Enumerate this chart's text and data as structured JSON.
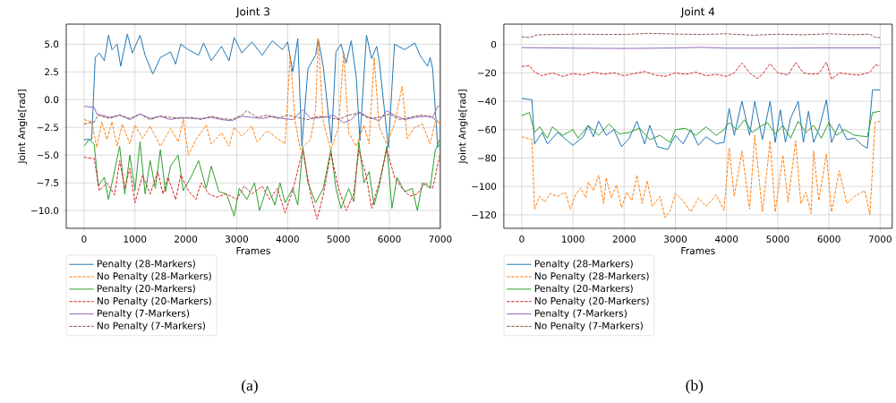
{
  "chart_data": [
    {
      "type": "line",
      "title": "Joint 3",
      "xlabel": "Frames",
      "ylabel": "Joint Angle[rad]",
      "annotations": [
        "(a)"
      ],
      "grid": true,
      "legend": "bottom left",
      "xlim": [
        -350,
        7000
      ],
      "ylim": [
        -11.6,
        6.8
      ],
      "xticks": [
        0,
        1000,
        2000,
        3000,
        4000,
        5000,
        6000,
        7000
      ],
      "yticks": [
        {
          "value": 5,
          "label": "5.0"
        },
        {
          "value": 2.5,
          "label": "2.5"
        },
        {
          "value": 0,
          "label": "0.0"
        },
        {
          "value": -2.5,
          "label": "−2.5"
        },
        {
          "value": -5,
          "label": "−5.0"
        },
        {
          "value": -7.5,
          "label": "−7.5"
        },
        {
          "value": -10,
          "label": "−10.0"
        }
      ],
      "series": [
        {
          "name": "Penalty (28-Markers)",
          "color": "#1f77b4",
          "line_style": "solid",
          "x": [
            0,
            150,
            220,
            300,
            400,
            480,
            550,
            650,
            720,
            850,
            950,
            1100,
            1200,
            1350,
            1500,
            1700,
            1800,
            1900,
            2050,
            2250,
            2350,
            2500,
            2700,
            2850,
            2950,
            3100,
            3300,
            3500,
            3700,
            3900,
            4000,
            4100,
            4200,
            4280,
            4400,
            4550,
            4600,
            4700,
            4860,
            4950,
            5050,
            5150,
            5250,
            5350,
            5420,
            5550,
            5650,
            5750,
            5800,
            5980,
            6100,
            6300,
            6500,
            6600,
            6750,
            6800,
            6850,
            6950,
            7000
          ],
          "values": [
            -3.6,
            -3.6,
            3.8,
            4.2,
            3.5,
            5.8,
            4.5,
            5.0,
            3.0,
            5.9,
            4.2,
            5.8,
            4.0,
            2.3,
            3.8,
            4.3,
            3.2,
            5.0,
            4.5,
            4.0,
            5.1,
            3.5,
            4.8,
            3.5,
            5.6,
            4.2,
            5.2,
            4.0,
            5.3,
            4.5,
            5.2,
            2.5,
            5.5,
            -4.2,
            2.8,
            4.0,
            5.5,
            3.0,
            -3.9,
            4.3,
            5.0,
            3.3,
            5.3,
            2.0,
            -3.7,
            5.8,
            3.7,
            4.8,
            3.5,
            -4.3,
            5.0,
            4.5,
            5.1,
            4.0,
            3.0,
            3.8,
            2.8,
            -4.3,
            -4.0
          ]
        },
        {
          "name": "No Penalty (28-Markers)",
          "color": "#ff7f0e",
          "line_style": "dashed",
          "x": [
            0,
            150,
            250,
            350,
            450,
            550,
            650,
            750,
            900,
            1000,
            1150,
            1300,
            1500,
            1700,
            1850,
            1950,
            2050,
            2200,
            2400,
            2500,
            2700,
            2850,
            2950,
            3100,
            3300,
            3400,
            3600,
            3800,
            3950,
            4050,
            4150,
            4250,
            4450,
            4550,
            4600,
            4700,
            4850,
            5000,
            5100,
            5200,
            5350,
            5500,
            5600,
            5700,
            5800,
            5950,
            6100,
            6250,
            6350,
            6500,
            6650,
            6800,
            6900,
            7000
          ],
          "values": [
            -1.8,
            -2.0,
            -4.3,
            -2.0,
            -3.6,
            -2.0,
            -4.2,
            -2.2,
            -4.0,
            -2.3,
            -3.5,
            -2.4,
            -4.2,
            -2.6,
            -3.8,
            -1.8,
            -5.0,
            -3.6,
            -2.3,
            -4.0,
            -3.0,
            -4.2,
            -2.5,
            -3.3,
            -2.4,
            -3.8,
            -2.8,
            -3.5,
            -4.0,
            4.0,
            -2.0,
            -4.5,
            -3.6,
            -1.0,
            5.5,
            -2.0,
            -4.5,
            -2.5,
            4.2,
            -3.0,
            -4.2,
            -2.3,
            -4.0,
            3.8,
            -2.5,
            -4.0,
            -2.2,
            1.2,
            -3.5,
            -2.5,
            -2.2,
            -4.0,
            -2.0,
            -2.2
          ]
        },
        {
          "name": "Penalty (20-Markers)",
          "color": "#2ca02c",
          "line_style": "solid",
          "x": [
            0,
            100,
            200,
            280,
            400,
            480,
            550,
            700,
            800,
            900,
            1000,
            1100,
            1200,
            1300,
            1400,
            1500,
            1600,
            1700,
            1850,
            1950,
            2100,
            2250,
            2400,
            2500,
            2650,
            2800,
            2950,
            3050,
            3200,
            3350,
            3450,
            3600,
            3750,
            3850,
            3950,
            4100,
            4200,
            4300,
            4400,
            4550,
            4700,
            4850,
            4950,
            5050,
            5200,
            5300,
            5400,
            5500,
            5600,
            5700,
            5800,
            5950,
            6050,
            6150,
            6300,
            6450,
            6550,
            6650,
            6800,
            6900,
            7000
          ],
          "values": [
            -4.2,
            -3.6,
            -4.0,
            -7.8,
            -7.0,
            -9.0,
            -7.5,
            -4.2,
            -8.5,
            -5.0,
            -8.2,
            -3.8,
            -8.5,
            -5.5,
            -8.0,
            -4.5,
            -8.3,
            -6.0,
            -5.0,
            -8.2,
            -7.0,
            -5.5,
            -8.0,
            -6.0,
            -8.3,
            -8.5,
            -10.5,
            -8.0,
            -9.0,
            -7.5,
            -10.0,
            -7.8,
            -9.5,
            -7.5,
            -9.3,
            -8.0,
            -9.5,
            -4.3,
            -7.5,
            -9.3,
            -8.0,
            -4.5,
            -8.0,
            -9.8,
            -8.0,
            -9.2,
            -3.8,
            -7.5,
            -6.5,
            -9.5,
            -7.8,
            -4.2,
            -9.8,
            -7.0,
            -8.3,
            -8.0,
            -10.0,
            -7.5,
            -8.0,
            -4.6,
            -3.5
          ]
        },
        {
          "name": "No Penalty (20-Markers)",
          "color": "#d62728",
          "line_style": "dashed",
          "x": [
            0,
            200,
            300,
            450,
            600,
            700,
            800,
            900,
            1000,
            1150,
            1300,
            1450,
            1550,
            1650,
            1800,
            1900,
            2050,
            2200,
            2300,
            2450,
            2600,
            2800,
            3000,
            3150,
            3300,
            3500,
            3650,
            3800,
            3950,
            4100,
            4300,
            4450,
            4580,
            4700,
            4850,
            5000,
            5150,
            5300,
            5400,
            5550,
            5650,
            5800,
            5950,
            6100,
            6250,
            6400,
            6550,
            6700,
            6850,
            7000
          ],
          "values": [
            -5.2,
            -5.3,
            -8.2,
            -7.5,
            -8.6,
            -5.5,
            -8.0,
            -6.2,
            -9.3,
            -6.8,
            -8.5,
            -6.5,
            -8.5,
            -7.0,
            -9.0,
            -6.8,
            -8.2,
            -9.0,
            -7.5,
            -8.5,
            -8.8,
            -8.5,
            -9.0,
            -7.8,
            -8.5,
            -7.8,
            -9.0,
            -8.0,
            -10.2,
            -8.2,
            -4.5,
            -8.5,
            -10.8,
            -8.6,
            -4.8,
            -8.0,
            -10.0,
            -8.5,
            -4.5,
            -7.0,
            -9.8,
            -7.5,
            -4.5,
            -7.0,
            -8.0,
            -8.7,
            -8.5,
            -7.5,
            -8.0,
            -4.8
          ]
        },
        {
          "name": "Penalty (7-Markers)",
          "color": "#9467bd",
          "line_style": "solid",
          "x": [
            0,
            200,
            250,
            500,
            700,
            900,
            1100,
            1300,
            1500,
            1700,
            1900,
            2100,
            2300,
            2500,
            2700,
            2900,
            3100,
            3300,
            3500,
            3700,
            3900,
            4100,
            4300,
            4450,
            4700,
            4900,
            5100,
            5250,
            5400,
            5600,
            5800,
            5950,
            6100,
            6300,
            6500,
            6700,
            6850,
            6950,
            7000
          ],
          "values": [
            -0.6,
            -0.7,
            -1.3,
            -1.6,
            -1.4,
            -1.8,
            -1.3,
            -1.7,
            -1.5,
            -1.8,
            -1.6,
            -1.7,
            -1.7,
            -1.6,
            -1.8,
            -1.9,
            -1.5,
            -1.6,
            -1.7,
            -1.5,
            -1.7,
            -1.8,
            -0.9,
            -1.7,
            -1.6,
            -1.4,
            -2.1,
            -1.8,
            -1.1,
            -1.6,
            -1.9,
            -1.0,
            -1.4,
            -1.8,
            -1.6,
            -1.5,
            -1.6,
            -0.6,
            -0.6
          ]
        },
        {
          "name": "No Penalty (7-Markers)",
          "color": "#8c564b",
          "line_style": "dashed",
          "x": [
            0,
            200,
            280,
            500,
            700,
            900,
            1100,
            1300,
            1500,
            1700,
            1900,
            2100,
            2300,
            2500,
            2700,
            2900,
            3100,
            3200,
            3400,
            3600,
            3800,
            4000,
            4200,
            4400,
            4600,
            4800,
            5000,
            5200,
            5400,
            5600,
            5800,
            6000,
            6200,
            6400,
            6600,
            6800,
            7000
          ],
          "values": [
            -2.2,
            -2.0,
            -1.4,
            -1.7,
            -1.4,
            -1.7,
            -1.3,
            -1.8,
            -1.5,
            -1.6,
            -1.7,
            -1.6,
            -1.8,
            -1.5,
            -1.7,
            -1.8,
            -1.4,
            -1.0,
            -1.6,
            -1.4,
            -1.7,
            -1.4,
            -1.6,
            -1.8,
            -1.5,
            -1.6,
            -1.8,
            -1.4,
            -1.2,
            -1.7,
            -1.6,
            -1.3,
            -1.8,
            -1.6,
            -1.4,
            -1.5,
            -2.1
          ]
        }
      ]
    },
    {
      "type": "line",
      "title": "Joint 4",
      "xlabel": "Frames",
      "ylabel": "Joint Angle[rad]",
      "annotations": [
        "(b)"
      ],
      "grid": true,
      "legend": "bottom left",
      "xlim": [
        -350,
        7235
      ],
      "ylim": [
        -129.5,
        14.3
      ],
      "xticks": [
        0,
        1000,
        2000,
        3000,
        4000,
        5000,
        6000,
        7000
      ],
      "yticks": [
        0,
        {
          "value": -20,
          "label": "−20"
        },
        {
          "value": -40,
          "label": "−40"
        },
        {
          "value": -60,
          "label": "−60"
        },
        {
          "value": -80,
          "label": "−80"
        },
        {
          "value": -100,
          "label": "−100"
        },
        {
          "value": -120,
          "label": "−120"
        }
      ],
      "series": [
        {
          "name": "Penalty (28-Markers)",
          "color": "#1f77b4",
          "line_style": "solid",
          "x": [
            0,
            200,
            250,
            400,
            500,
            700,
            900,
            1000,
            1200,
            1300,
            1400,
            1500,
            1650,
            1800,
            1950,
            2100,
            2250,
            2400,
            2500,
            2650,
            2850,
            3000,
            3150,
            3300,
            3450,
            3600,
            3800,
            3950,
            4050,
            4150,
            4300,
            4450,
            4550,
            4700,
            4850,
            4950,
            5050,
            5150,
            5250,
            5400,
            5500,
            5600,
            5700,
            5800,
            5950,
            6050,
            6200,
            6350,
            6500,
            6650,
            6750,
            6850,
            7000
          ],
          "values": [
            -38,
            -39,
            -70,
            -62,
            -70,
            -62,
            -68,
            -71,
            -65,
            -57,
            -65,
            -54,
            -64,
            -60,
            -72,
            -66,
            -54,
            -70,
            -57,
            -72,
            -74,
            -64,
            -70,
            -60,
            -71,
            -65,
            -70,
            -69,
            -45,
            -64,
            -40,
            -64,
            -40,
            -67,
            -40,
            -69,
            -46,
            -69,
            -52,
            -40,
            -69,
            -47,
            -69,
            -60,
            -39,
            -69,
            -56,
            -67,
            -66,
            -71,
            -73,
            -32,
            -32
          ]
        },
        {
          "name": "No Penalty (28-Markers)",
          "color": "#ff7f0e",
          "line_style": "dashed",
          "x": [
            0,
            200,
            250,
            350,
            450,
            550,
            700,
            850,
            950,
            1050,
            1150,
            1250,
            1300,
            1400,
            1500,
            1600,
            1650,
            1750,
            1850,
            1950,
            2050,
            2150,
            2250,
            2350,
            2450,
            2550,
            2700,
            2800,
            2900,
            3000,
            3150,
            3300,
            3450,
            3600,
            3800,
            3950,
            4050,
            4150,
            4300,
            4450,
            4550,
            4700,
            4850,
            4950,
            5100,
            5200,
            5350,
            5450,
            5550,
            5650,
            5700,
            5800,
            5950,
            6050,
            6200,
            6350,
            6500,
            6700,
            6800,
            6900,
            7000
          ],
          "values": [
            -65,
            -67,
            -116,
            -107,
            -111,
            -105,
            -107,
            -104,
            -116,
            -106,
            -101,
            -108,
            -97,
            -103,
            -92,
            -112,
            -94,
            -108,
            -99,
            -115,
            -104,
            -110,
            -92,
            -112,
            -96,
            -114,
            -107,
            -122,
            -117,
            -105,
            -110,
            -118,
            -108,
            -114,
            -106,
            -117,
            -73,
            -107,
            -75,
            -116,
            -64,
            -118,
            -68,
            -118,
            -78,
            -111,
            -68,
            -112,
            -104,
            -119,
            -75,
            -110,
            -77,
            -118,
            -89,
            -112,
            -107,
            -103,
            -120,
            -55,
            -54
          ]
        },
        {
          "name": "Penalty (20-Markers)",
          "color": "#2ca02c",
          "line_style": "solid",
          "x": [
            0,
            150,
            250,
            350,
            500,
            600,
            800,
            1000,
            1100,
            1300,
            1500,
            1700,
            1900,
            2100,
            2300,
            2500,
            2700,
            2900,
            3000,
            3200,
            3400,
            3600,
            3800,
            3950,
            4050,
            4200,
            4350,
            4500,
            4650,
            4800,
            4950,
            5100,
            5250,
            5400,
            5550,
            5700,
            5850,
            6000,
            6150,
            6300,
            6500,
            6750,
            6850,
            7000
          ],
          "values": [
            -50,
            -48,
            -62,
            -58,
            -66,
            -58,
            -64,
            -60,
            -66,
            -57,
            -64,
            -56,
            -63,
            -62,
            -59,
            -67,
            -64,
            -69,
            -60,
            -59,
            -64,
            -58,
            -64,
            -60,
            -55,
            -60,
            -53,
            -62,
            -58,
            -55,
            -63,
            -57,
            -66,
            -54,
            -62,
            -57,
            -66,
            -55,
            -64,
            -60,
            -64,
            -65,
            -48,
            -47
          ]
        },
        {
          "name": "No Penalty (20-Markers)",
          "color": "#d62728",
          "line_style": "dashed",
          "x": [
            0,
            150,
            250,
            400,
            600,
            800,
            1000,
            1200,
            1400,
            1600,
            1800,
            2000,
            2200,
            2400,
            2600,
            2800,
            3000,
            3200,
            3400,
            3600,
            3800,
            4000,
            4150,
            4300,
            4450,
            4600,
            4700,
            4850,
            5000,
            5200,
            5350,
            5500,
            5650,
            5800,
            5950,
            6050,
            6200,
            6400,
            6600,
            6800,
            6900,
            7000
          ],
          "values": [
            -15.5,
            -15.0,
            -19.5,
            -22.0,
            -20.0,
            -22.5,
            -20.5,
            -21.5,
            -19.5,
            -21.0,
            -20.0,
            -22.0,
            -20.5,
            -19.0,
            -21.5,
            -22.5,
            -20.0,
            -21.0,
            -19.5,
            -22.0,
            -21.0,
            -22.5,
            -20.0,
            -13.0,
            -20.0,
            -24.0,
            -21.0,
            -13.5,
            -20.0,
            -21.5,
            -12.8,
            -20.0,
            -21.0,
            -20.5,
            -12.5,
            -24.5,
            -20.0,
            -21.0,
            -21.5,
            -19.5,
            -14.5,
            -14.8
          ]
        },
        {
          "name": "Penalty (7-Markers)",
          "color": "#9467bd",
          "line_style": "solid",
          "x": [
            0,
            1000,
            2000,
            3000,
            3500,
            4000,
            5000,
            6000,
            7000
          ],
          "values": [
            -2.2,
            -2.6,
            -2.8,
            -2.5,
            -2.0,
            -2.6,
            -2.6,
            -2.4,
            -2.4
          ]
        },
        {
          "name": "No Penalty (7-Markers)",
          "color": "#8c564b",
          "line_style": "dashed",
          "x": [
            0,
            150,
            300,
            1000,
            2000,
            2500,
            3000,
            3500,
            4000,
            4500,
            5000,
            5500,
            6000,
            6500,
            6800,
            6900,
            7000
          ],
          "values": [
            5.5,
            4.8,
            6.8,
            7.2,
            7.0,
            7.8,
            7.3,
            7.0,
            7.5,
            6.5,
            7.2,
            6.8,
            7.5,
            6.8,
            7.3,
            5.0,
            4.8
          ]
        }
      ]
    }
  ]
}
